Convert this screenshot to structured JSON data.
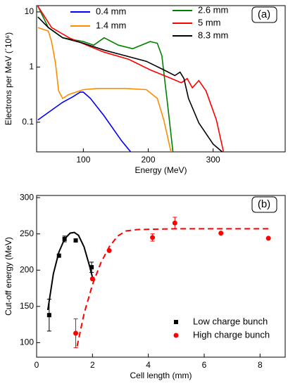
{
  "chart_data": [
    {
      "type": "line",
      "xlabel": "Energy (MeV)",
      "ylabel": "Electrons per MeV (´10⁶)",
      "annotation": "(a)",
      "xlim": [
        28,
        411
      ],
      "xticks": [
        100,
        200,
        300
      ],
      "ylim": [
        0.029,
        13
      ],
      "yticks": [
        0.1,
        1,
        10
      ],
      "ylog": true,
      "legend": "top",
      "series": [
        {
          "name": "0.4 mm",
          "color": "#0000ff",
          "x": [
            30,
            46,
            68,
            84,
            95,
            100,
            111,
            132,
            159,
            173
          ],
          "values": [
            0.11,
            0.15,
            0.23,
            0.29,
            0.35,
            0.35,
            0.27,
            0.13,
            0.046,
            0.029
          ]
        },
        {
          "name": "1.4 mm",
          "color": "#ff8c00",
          "x": [
            30,
            46,
            51,
            57,
            62,
            68,
            78,
            100,
            122,
            165,
            197,
            214,
            224,
            235
          ],
          "values": [
            5.2,
            4.5,
            2.9,
            1.2,
            0.37,
            0.27,
            0.32,
            0.39,
            0.41,
            0.41,
            0.39,
            0.27,
            0.11,
            0.029
          ]
        },
        {
          "name": "2.6 mm",
          "color": "#008000",
          "x": [
            30,
            46,
            68,
            100,
            116,
            132,
            154,
            176,
            203,
            214,
            221,
            230,
            238
          ],
          "values": [
            12.7,
            5.2,
            3.4,
            2.9,
            2.5,
            3.4,
            2.5,
            2.15,
            2.9,
            2.7,
            1.6,
            0.2,
            0.029
          ]
        },
        {
          "name": "5 mm",
          "color": "#ff0000",
          "x": [
            30,
            51,
            78,
            105,
            132,
            170,
            203,
            230,
            251,
            260,
            268,
            278,
            289,
            305,
            316
          ],
          "values": [
            12.7,
            5.2,
            3.4,
            2.5,
            1.86,
            1.38,
            0.89,
            0.66,
            0.52,
            0.62,
            0.42,
            0.57,
            0.37,
            0.11,
            0.029
          ]
        },
        {
          "name": "8.3 mm",
          "color": "#000000",
          "x": [
            30,
            46,
            68,
            100,
            132,
            165,
            197,
            224,
            241,
            249,
            255,
            262,
            278,
            300,
            314
          ],
          "values": [
            8.1,
            5.2,
            3.4,
            2.7,
            2.03,
            1.6,
            1.27,
            0.89,
            0.7,
            0.81,
            0.62,
            0.27,
            0.097,
            0.04,
            0.029
          ]
        }
      ]
    },
    {
      "type": "scatter",
      "xlabel": "Cell length  (mm)",
      "ylabel": "Cut-off energy (MeV)",
      "annotation": "(b)",
      "xlim": [
        0,
        8.9
      ],
      "xticks": [
        0,
        2,
        4,
        6,
        8
      ],
      "ylim": [
        80,
        303
      ],
      "yticks": [
        100,
        150,
        200,
        250,
        300
      ],
      "legend": "lower right",
      "series": [
        {
          "name": "Low charge bunch",
          "color": "#000000",
          "marker": "square",
          "x": [
            0.45,
            0.8,
            1.0,
            1.4,
            1.97
          ],
          "values": [
            138,
            220,
            243,
            241,
            204
          ],
          "errors": [
            22,
            null,
            4,
            null,
            7
          ]
        },
        {
          "name": "High charge bunch",
          "color": "#ff0000",
          "marker": "circle",
          "x": [
            1.4,
            2.0,
            2.6,
            4.15,
            4.95,
            6.6,
            8.3
          ],
          "values": [
            113,
            188,
            227,
            245,
            265,
            251,
            244
          ],
          "errors": [
            20,
            null,
            null,
            5,
            8,
            null,
            null
          ]
        }
      ],
      "fits": [
        {
          "color": "#000000",
          "dash": false,
          "x": [
            0.4,
            0.6,
            0.8,
            1.0,
            1.2,
            1.35,
            1.5,
            1.7,
            1.9,
            2.0
          ],
          "values": [
            145,
            195,
            225,
            243,
            251,
            252,
            248,
            232,
            205,
            190
          ]
        },
        {
          "color": "#ff0000",
          "dash": true,
          "x": [
            1.45,
            1.7,
            2.0,
            2.3,
            2.6,
            2.9,
            3.2,
            3.6,
            5,
            8.3
          ],
          "values": [
            95,
            140,
            180,
            210,
            232,
            247,
            254,
            256,
            257,
            257
          ]
        }
      ]
    }
  ]
}
